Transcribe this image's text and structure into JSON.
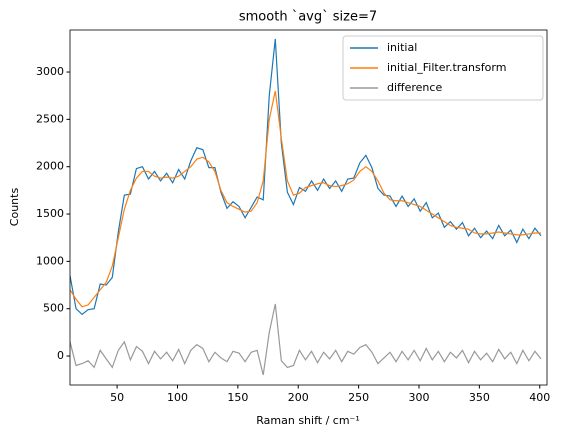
{
  "chart_data": {
    "type": "line",
    "title": "smooth `avg` size=7",
    "xlabel": "Raman shift / cm⁻¹",
    "ylabel": "Counts",
    "x": [
      11,
      16,
      21,
      26,
      31,
      36,
      41,
      46,
      51,
      56,
      61,
      66,
      71,
      76,
      81,
      86,
      91,
      96,
      101,
      106,
      111,
      116,
      121,
      126,
      131,
      136,
      141,
      146,
      151,
      156,
      161,
      166,
      171,
      176,
      181,
      186,
      191,
      196,
      201,
      206,
      211,
      216,
      221,
      226,
      231,
      236,
      241,
      246,
      251,
      256,
      261,
      266,
      271,
      276,
      281,
      286,
      291,
      296,
      301,
      306,
      311,
      316,
      321,
      326,
      331,
      336,
      341,
      346,
      351,
      356,
      361,
      366,
      371,
      376,
      381,
      386,
      391,
      396,
      401
    ],
    "series": [
      {
        "name": "initial",
        "color": "#1f77b4",
        "values": [
          850,
          500,
          440,
          490,
          500,
          760,
          750,
          830,
          1310,
          1700,
          1710,
          1980,
          2000,
          1870,
          1950,
          1850,
          1930,
          1830,
          1970,
          1870,
          2060,
          2200,
          2180,
          1990,
          1990,
          1730,
          1560,
          1630,
          1580,
          1460,
          1570,
          1680,
          1650,
          2750,
          3350,
          2250,
          1730,
          1600,
          1780,
          1740,
          1850,
          1750,
          1870,
          1770,
          1850,
          1740,
          1870,
          1880,
          2040,
          2120,
          1990,
          1770,
          1700,
          1690,
          1580,
          1690,
          1580,
          1660,
          1530,
          1620,
          1460,
          1510,
          1360,
          1420,
          1340,
          1410,
          1270,
          1350,
          1250,
          1320,
          1240,
          1380,
          1270,
          1330,
          1200,
          1340,
          1240,
          1350,
          1270
        ]
      },
      {
        "name": "initial_Filter.transform",
        "color": "#ff7f0e",
        "values": [
          700,
          600,
          520,
          540,
          620,
          700,
          780,
          950,
          1250,
          1550,
          1750,
          1880,
          1950,
          1950,
          1900,
          1880,
          1890,
          1880,
          1900,
          1950,
          2000,
          2080,
          2100,
          2050,
          1950,
          1750,
          1620,
          1580,
          1550,
          1520,
          1530,
          1620,
          1850,
          2500,
          2800,
          2300,
          1850,
          1700,
          1720,
          1780,
          1800,
          1820,
          1830,
          1800,
          1790,
          1800,
          1820,
          1860,
          1950,
          2000,
          1950,
          1850,
          1720,
          1650,
          1640,
          1640,
          1620,
          1600,
          1580,
          1540,
          1500,
          1460,
          1420,
          1380,
          1360,
          1350,
          1340,
          1300,
          1290,
          1290,
          1300,
          1310,
          1300,
          1290,
          1280,
          1280,
          1290,
          1300,
          1300
        ]
      },
      {
        "name": "difference",
        "color": "#999999",
        "values": [
          150,
          -100,
          -80,
          -50,
          -120,
          60,
          -30,
          -120,
          60,
          150,
          -40,
          100,
          50,
          -80,
          50,
          -30,
          40,
          -50,
          70,
          -80,
          60,
          120,
          80,
          -60,
          40,
          -20,
          -60,
          50,
          30,
          -60,
          40,
          60,
          -200,
          250,
          550,
          -50,
          -120,
          -100,
          60,
          -40,
          50,
          -70,
          40,
          -30,
          60,
          -60,
          50,
          20,
          90,
          120,
          40,
          -80,
          -20,
          40,
          -60,
          50,
          -40,
          60,
          -50,
          80,
          -40,
          50,
          -60,
          40,
          -20,
          60,
          -70,
          50,
          -40,
          30,
          -60,
          70,
          -30,
          40,
          -80,
          60,
          -50,
          50,
          -30
        ]
      }
    ],
    "xlim": [
      11,
      406
    ],
    "xticks": [
      50,
      100,
      150,
      200,
      250,
      300,
      350,
      400
    ],
    "ylim": [
      -306,
      3444
    ],
    "yticks": [
      0,
      500,
      1000,
      1500,
      2000,
      2500,
      3000
    ],
    "grid": false,
    "legend": "upper right"
  }
}
